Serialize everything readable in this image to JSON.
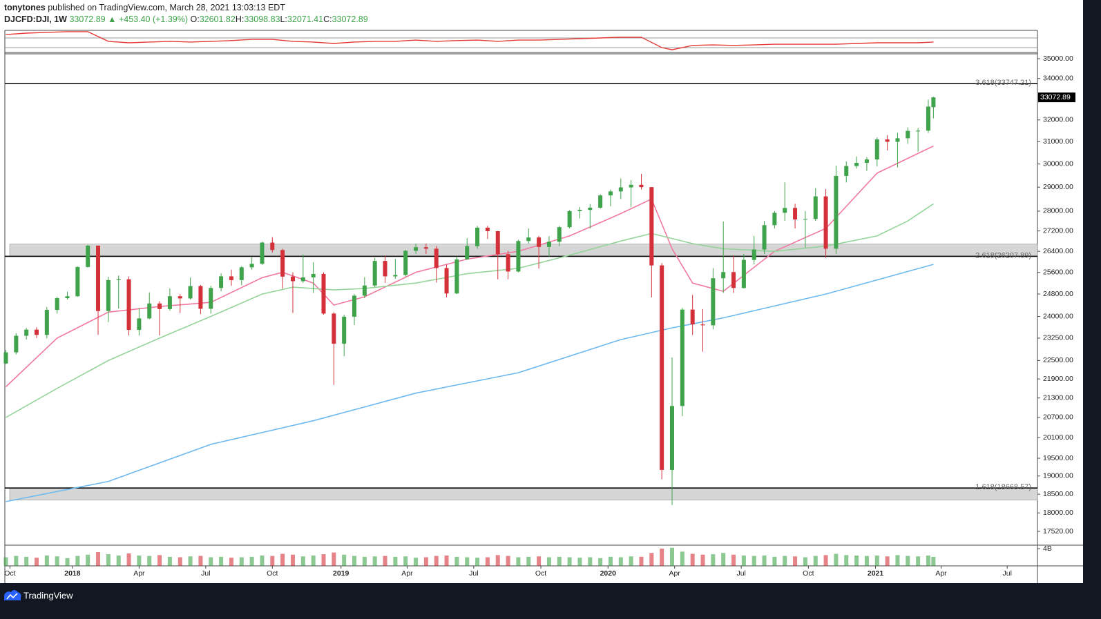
{
  "brand": "TradingView",
  "header": {
    "author": "tonytones",
    "published": "published on TradingView.com, March 28, 2021 13:03:13 EDT",
    "symbol": "DJCFD:DJI, 1W",
    "last": "33072.89",
    "change": "▲ +453.40 (+1.39%)",
    "ohlc": [
      {
        "label": "O:",
        "value": "32601.82"
      },
      {
        "label": "H:",
        "value": "33098.83"
      },
      {
        "label": "L:",
        "value": "32071.41"
      },
      {
        "label": "C:",
        "value": "33072.89"
      }
    ]
  },
  "chart_data": {
    "type": "candlestick",
    "log_scale": true,
    "up_color": "#3ea34a",
    "down_color": "#d3303a",
    "xlim": [
      -0.2,
      201.3
    ],
    "ylim": [
      17170,
      35250
    ],
    "xticks": [
      {
        "value": 0.8,
        "label": "Oct"
      },
      {
        "value": 13,
        "label": "2018"
      },
      {
        "value": 26,
        "label": "Apr"
      },
      {
        "value": 39,
        "label": "Jul"
      },
      {
        "value": 52,
        "label": "Oct"
      },
      {
        "value": 65.4,
        "label": "2019"
      },
      {
        "value": 78.3,
        "label": "Apr"
      },
      {
        "value": 91.3,
        "label": "Jul"
      },
      {
        "value": 104.4,
        "label": "Oct"
      },
      {
        "value": 117.5,
        "label": "2020"
      },
      {
        "value": 130.5,
        "label": "Apr"
      },
      {
        "value": 143.5,
        "label": "Jul"
      },
      {
        "value": 156.6,
        "label": "Oct"
      },
      {
        "value": 169.7,
        "label": "2021"
      },
      {
        "value": 182.5,
        "label": "Apr"
      },
      {
        "value": 195.4,
        "label": "Jul"
      }
    ],
    "yticks": [
      {
        "value": 35000,
        "label": "35000.00"
      },
      {
        "value": 34000,
        "label": "34000.00"
      },
      {
        "value": 32000,
        "label": "32000.00"
      },
      {
        "value": 31000,
        "label": "31000.00"
      },
      {
        "value": 30000,
        "label": "30000.00"
      },
      {
        "value": 29000,
        "label": "29000.00"
      },
      {
        "value": 28000,
        "label": "28000.00"
      },
      {
        "value": 27200,
        "label": "27200.00"
      },
      {
        "value": 26400,
        "label": "26400.00"
      },
      {
        "value": 25600,
        "label": "25600.00"
      },
      {
        "value": 24800,
        "label": "24800.00"
      },
      {
        "value": 24000,
        "label": "24000.00"
      },
      {
        "value": 23250,
        "label": "23250.00"
      },
      {
        "value": 22500,
        "label": "22500.00"
      },
      {
        "value": 21900,
        "label": "21900.00"
      },
      {
        "value": 21300,
        "label": "21300.00"
      },
      {
        "value": 20700,
        "label": "20700.00"
      },
      {
        "value": 20100,
        "label": "20100.00"
      },
      {
        "value": 19500,
        "label": "19500.00"
      },
      {
        "value": 19000,
        "label": "19000.00"
      },
      {
        "value": 18500,
        "label": "18500.00"
      },
      {
        "value": 18000,
        "label": "18000.00"
      },
      {
        "value": 17520,
        "label": "17520.00"
      }
    ],
    "x": [
      0,
      2,
      4,
      6,
      8,
      10,
      12,
      14,
      16,
      18,
      20,
      22,
      24,
      26,
      28,
      30,
      32,
      34,
      36,
      38,
      40,
      42,
      44,
      46,
      48,
      50,
      52,
      54,
      56,
      58,
      60,
      62,
      64,
      66,
      68,
      70,
      72,
      74,
      76,
      78,
      80,
      82,
      84,
      86,
      88,
      90,
      92,
      94,
      96,
      98,
      100,
      102,
      104,
      106,
      108,
      110,
      112,
      114,
      116,
      118,
      120,
      122,
      124,
      126,
      128,
      130,
      132,
      134,
      136,
      138,
      140,
      142,
      144,
      146,
      148,
      150,
      152,
      154,
      156,
      158,
      160,
      162,
      164,
      166,
      168,
      170,
      172,
      174,
      176,
      178,
      180,
      181
    ],
    "open": [
      22400,
      22770,
      23330,
      23540,
      23360,
      24230,
      24650,
      24720,
      25800,
      26620,
      24190,
      25310,
      25340,
      23530,
      23930,
      24460,
      24260,
      24720,
      24640,
      25090,
      24270,
      25020,
      25450,
      25310,
      25790,
      25920,
      26740,
      26450,
      25440,
      25270,
      25410,
      25540,
      24100,
      23060,
      23990,
      24740,
      25110,
      26030,
      25450,
      25500,
      26420,
      26560,
      26500,
      25760,
      24820,
      26090,
      26600,
      27330,
      27190,
      26290,
      25630,
      26800,
      26940,
      26570,
      26770,
      27350,
      28000,
      28050,
      28140,
      28650,
      28820,
      28990,
      29100,
      29000,
      25860,
      19170,
      21050,
      24240,
      23720,
      23690,
      25380,
      25610,
      25020,
      26070,
      26470,
      27430,
      27930,
      28130,
      27660,
      27680,
      28610,
      26500,
      29480,
      29910,
      30050,
      30200,
      31100,
      30990,
      31150,
      31490,
      31500,
      32601.82
    ],
    "high": [
      22850,
      23420,
      23600,
      23620,
      24330,
      24700,
      24880,
      25820,
      26650,
      26620,
      25430,
      25480,
      25450,
      24300,
      24860,
      24540,
      25000,
      24800,
      25400,
      25130,
      25100,
      25560,
      25700,
      25830,
      26170,
      26770,
      26950,
      26500,
      25600,
      26280,
      25980,
      25600,
      24150,
      24060,
      24800,
      25420,
      26150,
      26240,
      26110,
      26460,
      26700,
      26700,
      26600,
      25900,
      26200,
      26910,
      27400,
      27400,
      27200,
      26420,
      26850,
      27300,
      27000,
      26990,
      27400,
      28040,
      28170,
      28290,
      28700,
      28900,
      29370,
      29300,
      29570,
      29000,
      25950,
      22600,
      24300,
      24770,
      24260,
      25760,
      27580,
      26250,
      26300,
      27000,
      27600,
      28000,
      29200,
      28300,
      28000,
      28960,
      28920,
      29930,
      30120,
      30330,
      30300,
      31190,
      31300,
      31400,
      31650,
      31620,
      32960,
      33098.83
    ],
    "low": [
      22380,
      22700,
      23200,
      23250,
      23240,
      24100,
      24600,
      24700,
      25780,
      23360,
      23800,
      24280,
      23340,
      23340,
      23900,
      23340,
      24200,
      24120,
      24600,
      24080,
      24100,
      24900,
      25100,
      25120,
      25700,
      25880,
      26350,
      25000,
      24120,
      25210,
      24840,
      24060,
      21710,
      22640,
      23700,
      24650,
      25050,
      25210,
      25360,
      25440,
      26300,
      26300,
      25220,
      24680,
      24800,
      26070,
      26500,
      26880,
      25340,
      25340,
      25600,
      26700,
      25740,
      26200,
      26600,
      27300,
      27700,
      27300,
      28100,
      28200,
      28500,
      28170,
      28900,
      24680,
      18910,
      18210,
      20740,
      23360,
      22790,
      23550,
      24840,
      24840,
      25000,
      25900,
      26300,
      27300,
      27600,
      27300,
      26540,
      27600,
      26150,
      26300,
      29200,
      29800,
      29700,
      29900,
      30600,
      29850,
      30900,
      30550,
      31400,
      32071.41
    ],
    "close": [
      22770,
      23330,
      23540,
      23360,
      24230,
      24650,
      24720,
      25800,
      26620,
      24190,
      25310,
      25340,
      23530,
      23930,
      24460,
      24260,
      24720,
      24640,
      25090,
      24270,
      25020,
      25450,
      25310,
      25790,
      25920,
      26740,
      26450,
      25440,
      25270,
      25410,
      25540,
      24100,
      23060,
      23990,
      24740,
      25110,
      26030,
      25450,
      25500,
      26420,
      26560,
      26500,
      25760,
      24820,
      26090,
      26600,
      27330,
      27190,
      26290,
      25630,
      26800,
      26940,
      26570,
      26770,
      27350,
      28000,
      28050,
      28140,
      28650,
      28820,
      28990,
      29100,
      29000,
      25860,
      19170,
      21050,
      24240,
      23720,
      23690,
      25380,
      25610,
      25020,
      26070,
      26470,
      27430,
      27930,
      28130,
      27660,
      27680,
      28610,
      26500,
      29480,
      29910,
      30050,
      30200,
      31100,
      30990,
      31150,
      31490,
      31500,
      32630,
      33072.89
    ],
    "overlays": [
      {
        "color": "#f0799c",
        "x": [
          0,
          10,
          20,
          30,
          40,
          50,
          54,
          60,
          64,
          70,
          80,
          90,
          100,
          110,
          120,
          126,
          130,
          134,
          140,
          150,
          160,
          170,
          181
        ],
        "values": [
          21650,
          23250,
          24150,
          24350,
          24500,
          25400,
          25600,
          25200,
          24400,
          24700,
          25600,
          26100,
          26400,
          27000,
          27900,
          28500,
          26500,
          25200,
          24900,
          26400,
          27300,
          29600,
          30800
        ]
      },
      {
        "color": "#95d49a",
        "x": [
          0,
          10,
          20,
          30,
          40,
          50,
          56,
          64,
          70,
          80,
          90,
          100,
          110,
          120,
          126,
          130,
          134,
          140,
          150,
          160,
          170,
          176,
          181
        ],
        "values": [
          20700,
          21600,
          22500,
          23250,
          24000,
          24800,
          25050,
          24950,
          25000,
          25200,
          25550,
          25750,
          26250,
          26800,
          27100,
          26900,
          26700,
          26500,
          26400,
          26600,
          27000,
          27600,
          28300
        ]
      },
      {
        "color": "#6cb8ef",
        "x": [
          0,
          20,
          40,
          60,
          80,
          100,
          120,
          130,
          140,
          160,
          181
        ],
        "values": [
          18300,
          18850,
          19900,
          20600,
          21450,
          22100,
          23200,
          23600,
          23950,
          24800,
          25900
        ]
      }
    ],
    "fib_levels": [
      {
        "value": 33747.21,
        "label": "3.618(33747.21)"
      },
      {
        "value": 26207.89,
        "label": "2.618(26207.89)"
      },
      {
        "value": 18668.57,
        "label": "1.618(18668.57)"
      }
    ],
    "zones": [
      [
        26207.89,
        26680
      ],
      [
        18340,
        18668.57
      ]
    ],
    "rsi": {
      "color": "#e53935",
      "ylim": [
        10,
        101.4
      ],
      "levels": [
        70,
        30
      ],
      "x": [
        0,
        4,
        8,
        12,
        16,
        20,
        24,
        28,
        32,
        36,
        40,
        44,
        48,
        52,
        56,
        60,
        64,
        68,
        72,
        76,
        80,
        84,
        88,
        92,
        96,
        100,
        104,
        108,
        112,
        116,
        120,
        124,
        128,
        130,
        134,
        138,
        142,
        146,
        150,
        154,
        158,
        162,
        166,
        170,
        174,
        178,
        181
      ],
      "values": [
        84,
        90,
        93,
        96,
        96,
        56,
        50,
        53,
        56,
        53,
        56,
        59,
        64,
        64,
        56,
        53,
        47,
        53,
        56,
        56,
        61,
        56,
        59,
        61,
        56,
        61,
        61,
        64,
        67,
        70,
        73,
        73,
        30,
        21,
        39,
        41,
        39,
        41,
        44,
        44,
        44,
        44,
        47,
        50,
        50,
        50,
        53
      ]
    },
    "volume": {
      "ylim": [
        0,
        4.8
      ],
      "yticks": [
        {
          "value": 4,
          "label": "4B"
        }
      ],
      "values": [
        2.0,
        2.3,
        2.1,
        1.9,
        2.4,
        2.2,
        1.8,
        2.3,
        2.6,
        3.2,
        2.7,
        2.4,
        2.9,
        2.4,
        2.3,
        2.5,
        2.1,
        2.0,
        2.2,
        2.3,
        2.0,
        2.1,
        1.9,
        2.0,
        2.1,
        2.4,
        2.3,
        2.8,
        2.6,
        2.2,
        2.4,
        2.7,
        3.1,
        2.6,
        2.3,
        2.1,
        2.2,
        2.3,
        2.1,
        2.2,
        1.9,
        2.0,
        2.3,
        2.4,
        2.1,
        2.0,
        1.9,
        2.0,
        2.5,
        2.3,
        2.0,
        2.1,
        2.2,
        2.0,
        2.1,
        2.0,
        1.9,
        2.0,
        1.8,
        2.1,
        2.0,
        2.2,
        2.1,
        3.0,
        4.0,
        4.2,
        3.3,
        2.8,
        2.6,
        2.7,
        3.0,
        2.6,
        2.4,
        2.3,
        2.4,
        2.1,
        2.3,
        2.2,
        2.0,
        2.3,
        2.5,
        2.8,
        2.5,
        2.4,
        2.3,
        2.4,
        2.2,
        2.5,
        2.3,
        2.2,
        2.4,
        2.1
      ]
    }
  }
}
